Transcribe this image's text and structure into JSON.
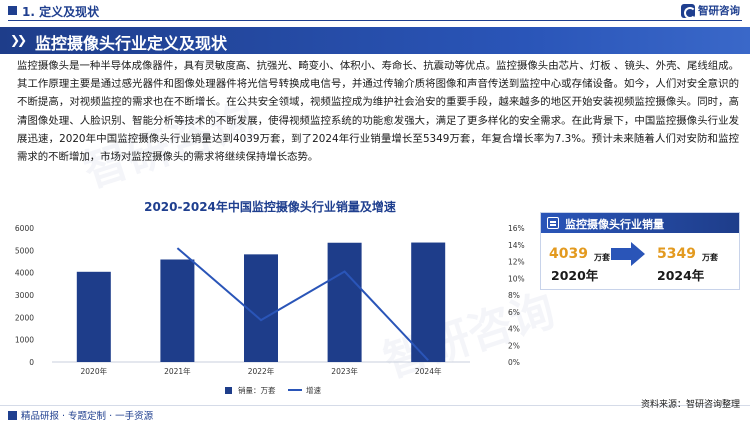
{
  "header": {
    "section_title": "1. 定义及现状",
    "logo_text": "智研咨询"
  },
  "banner": {
    "title": "监控摄像头行业定义及现状"
  },
  "paragraph": "监控摄像头是一种半导体成像器件，具有灵敏度高、抗强光、畸变小、体积小、寿命长、抗震动等优点。监控摄像头由芯片、灯板 、镜头、外壳、尾线组成。其工作原理主要是通过感光器件和图像处理器件将光信号转换成电信号，并通过传输介质将图像和声音传送到监控中心或存储设备。如今，人们对安全意识的不断提高，对视频监控的需求也在不断增长。在公共安全领域，视频监控成为维护社会治安的重要手段，越来越多的地区开始安装视频监控摄像头。同时，高清图像处理、人脸识别、智能分析等技术的不断发展，使得视频监控系统的功能愈发强大，满足了更多样化的安全需求。在此背景下，中国监控摄像头行业发展迅速，2020年中国监控摄像头行业销量达到4039万套，到了2024年行业销量增长至5349万套，年复合增长率为7.3%。预计未来随着人们对安防和监控需求的不断增加，市场对监控摄像头的需求将继续保持增长态势。",
  "stats_card": {
    "title": "监控摄像头行业销量",
    "from_value": "4039",
    "from_unit": "万套",
    "from_year": "2020年",
    "to_value": "5349",
    "to_unit": "万套",
    "to_year": "2024年"
  },
  "footer": {
    "tagline": "精品研报 · 专题定制 · 一手资源",
    "source": "资料来源：智研咨询整理"
  },
  "colors": {
    "brand": "#1f3f8f",
    "bar": "#1e3d8a",
    "line": "#2a55b8",
    "accent": "#e39a1f"
  },
  "chart_data": {
    "type": "bar",
    "title": "2020-2024年中国监控摄像头行业销量及增速",
    "categories": [
      "2020年",
      "2021年",
      "2022年",
      "2023年",
      "2024年"
    ],
    "series": [
      {
        "name": "销量：万套",
        "type": "bar",
        "axis": "left",
        "values": [
          4039,
          4590,
          4820,
          5340,
          5349
        ]
      },
      {
        "name": "增速",
        "type": "line",
        "axis": "right",
        "values": [
          null,
          13.6,
          5.0,
          10.8,
          0.2
        ]
      }
    ],
    "ylim_left": [
      0,
      6000
    ],
    "yticks_left": [
      "0",
      "1000",
      "2000",
      "3000",
      "4000",
      "5000",
      "6000"
    ],
    "ylim_right": [
      0,
      16
    ],
    "yticks_right": [
      "0%",
      "2%",
      "4%",
      "6%",
      "8%",
      "10%",
      "12%",
      "14%",
      "16%"
    ],
    "legend": "bottom",
    "grid": false
  }
}
